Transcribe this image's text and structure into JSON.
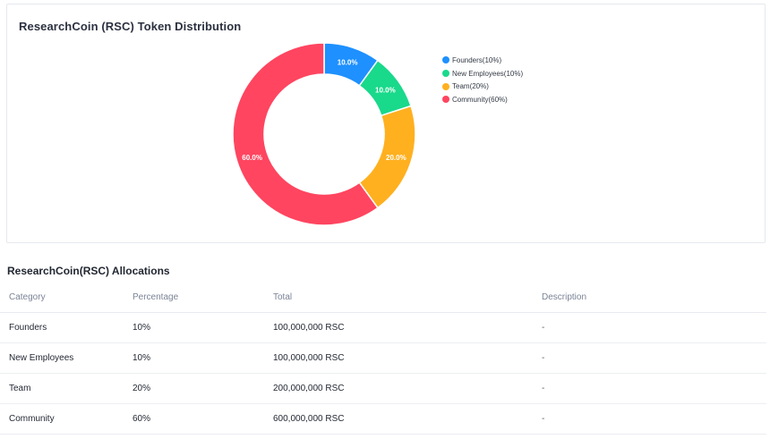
{
  "card": {
    "title": "ResearchCoin (RSC) Token Distribution"
  },
  "chart_data": {
    "type": "pie",
    "title": "ResearchCoin (RSC) Token Distribution",
    "donut": true,
    "legend_position": "top-right",
    "slices": [
      {
        "label": "Founders",
        "legend": "Founders(10%)",
        "value": 10,
        "data_label": "10.0%",
        "color": "#1e90ff"
      },
      {
        "label": "New Employees",
        "legend": "New Employees(10%)",
        "value": 10,
        "data_label": "10.0%",
        "color": "#19d98b"
      },
      {
        "label": "Team",
        "legend": "Team(20%)",
        "value": 20,
        "data_label": "20.0%",
        "color": "#ffb01f"
      },
      {
        "label": "Community",
        "legend": "Community(60%)",
        "value": 60,
        "data_label": "60.0%",
        "color": "#ff4560"
      }
    ]
  },
  "allocations": {
    "title": "ResearchCoin(RSC) Allocations",
    "columns": [
      "Category",
      "Percentage",
      "Total",
      "Description"
    ],
    "rows": [
      [
        "Founders",
        "10%",
        "100,000,000 RSC",
        "-"
      ],
      [
        "New Employees",
        "10%",
        "100,000,000 RSC",
        "-"
      ],
      [
        "Team",
        "20%",
        "200,000,000 RSC",
        "-"
      ],
      [
        "Community",
        "60%",
        "600,000,000 RSC",
        "-"
      ]
    ]
  }
}
